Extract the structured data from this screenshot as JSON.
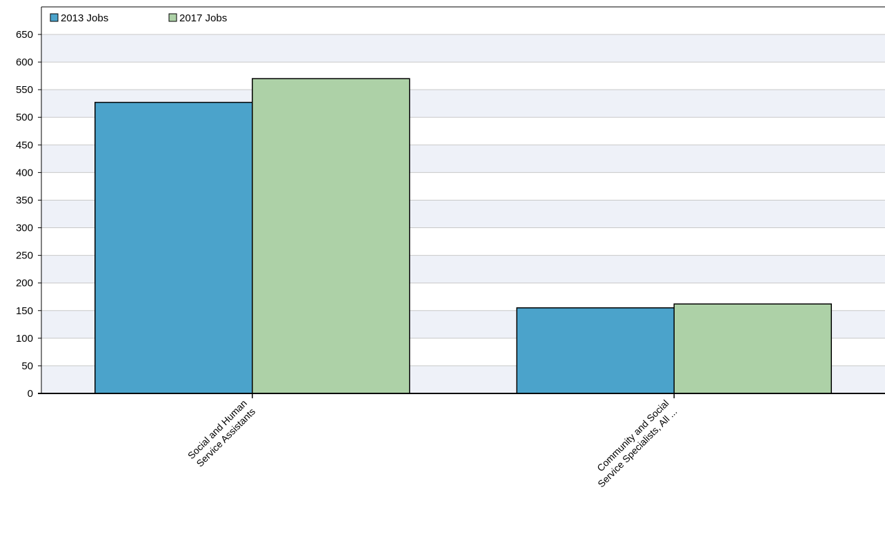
{
  "chart_data": {
    "type": "bar",
    "categories": [
      [
        "Social and Human",
        "Service Assistants"
      ],
      [
        "Community and Social",
        "Service Specialists, All ..."
      ]
    ],
    "series": [
      {
        "name": "2013 Jobs",
        "values": [
          527,
          155
        ],
        "color": "#4BA3CB"
      },
      {
        "name": "2017 Jobs",
        "values": [
          570,
          162
        ],
        "color": "#ADD1A7"
      }
    ],
    "ylim": [
      0,
      650
    ],
    "yticks": [
      0,
      50,
      100,
      150,
      200,
      250,
      300,
      350,
      400,
      450,
      500,
      550,
      600,
      650
    ],
    "title": "",
    "xlabel": "",
    "ylabel": "",
    "legend": "top-left",
    "grid": true,
    "band_colors": [
      "#EEF1F8",
      "#FFFFFF"
    ]
  }
}
